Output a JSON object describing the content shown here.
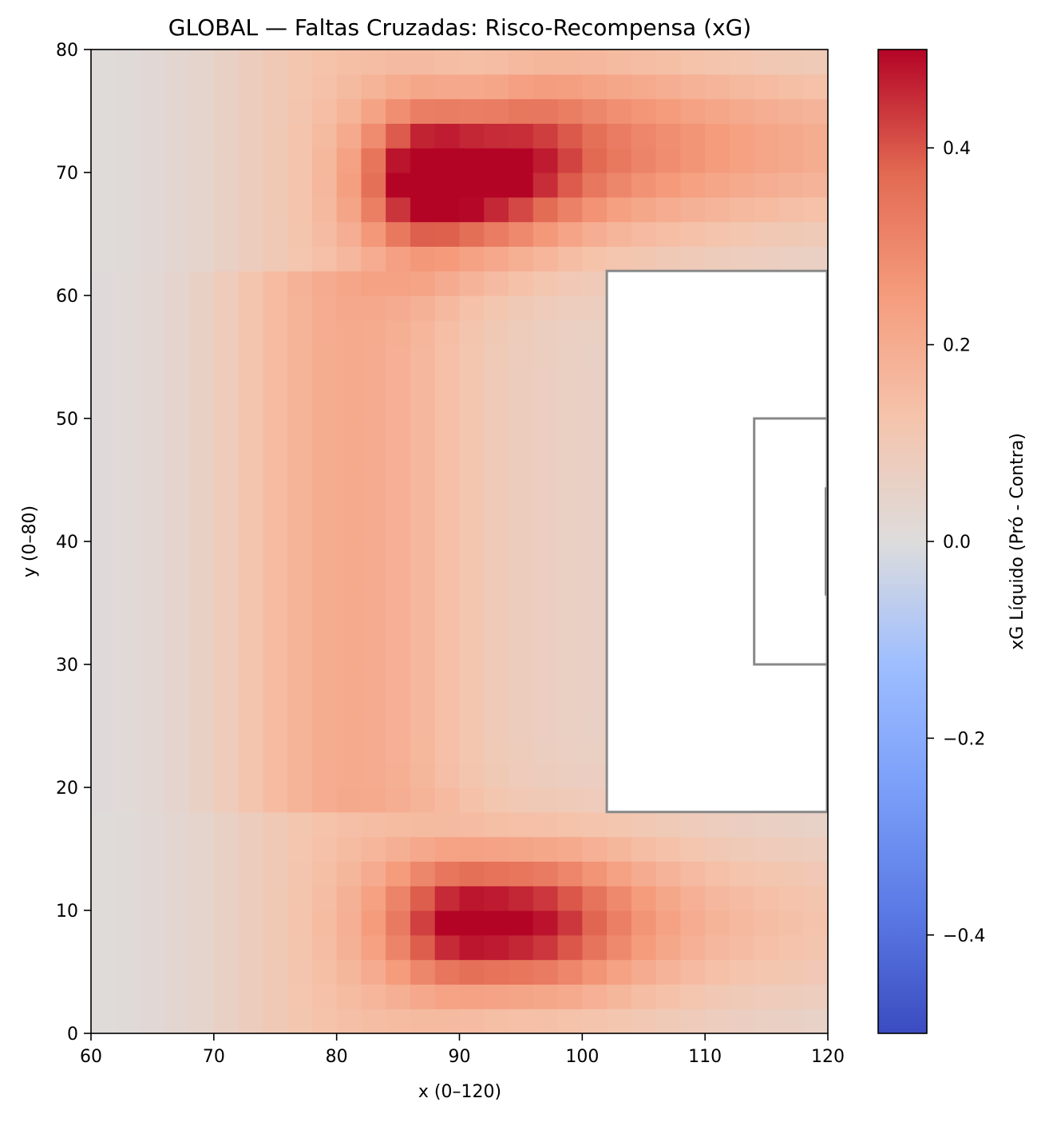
{
  "chart_data": {
    "type": "heatmap",
    "title": "GLOBAL — Faltas Cruzadas: Risco-Recompensa (xG)",
    "xlabel": "x (0–120)",
    "ylabel": "y (0–80)",
    "colorbar_label": "xG Líquido (Pró - Contra)",
    "colormap": "coolwarm",
    "xlim": [
      60,
      120
    ],
    "ylim": [
      0,
      80
    ],
    "clim": [
      -0.5,
      0.5
    ],
    "xticks": [
      60,
      70,
      80,
      90,
      100,
      110,
      120
    ],
    "xtick_labels": [
      "60",
      "70",
      "80",
      "90",
      "100",
      "110",
      "120"
    ],
    "yticks": [
      0,
      10,
      20,
      30,
      40,
      50,
      60,
      70,
      80
    ],
    "ytick_labels": [
      "0",
      "10",
      "20",
      "30",
      "40",
      "50",
      "60",
      "70",
      "80"
    ],
    "colorbar_ticks": [
      -0.4,
      -0.2,
      0.0,
      0.2,
      0.4
    ],
    "colorbar_tick_labels": [
      "−0.4",
      "−0.2",
      "0.0",
      "0.2",
      "0.4"
    ],
    "grid": false,
    "cell_size": 2,
    "upper_hotspot": {
      "x": 88,
      "y": 69.5,
      "sx_left": 4,
      "sx_right": 6.5,
      "sy": 4.2,
      "amp": 0.5
    },
    "upper_band": {
      "x_from": 94,
      "x_to": 120,
      "y": 72,
      "sy": 5,
      "amp": 0.3
    },
    "lower_hotspot": {
      "x": 91,
      "y": 9,
      "sx_left": 5,
      "sx_right": 7.5,
      "sy": 4,
      "amp": 0.43
    },
    "lower_band": {
      "x_from": 96,
      "x_to": 120,
      "y": 9,
      "sy": 5,
      "amp": 0.17
    },
    "left_column": {
      "x": 81,
      "sx": 7,
      "y_from": 18,
      "y_to": 62,
      "amp": 0.15
    },
    "masked_region": {
      "x": [
        102,
        120
      ],
      "y": [
        18,
        62
      ]
    },
    "pitch_lines": {
      "color": "#888888",
      "penalty_area": {
        "x": [
          102,
          120
        ],
        "y": [
          18,
          62
        ]
      },
      "six_yard_box": {
        "x": [
          114,
          120
        ],
        "y": [
          30,
          50
        ]
      },
      "goal": {
        "x": 120,
        "y": [
          35.6,
          44.4
        ]
      }
    }
  }
}
